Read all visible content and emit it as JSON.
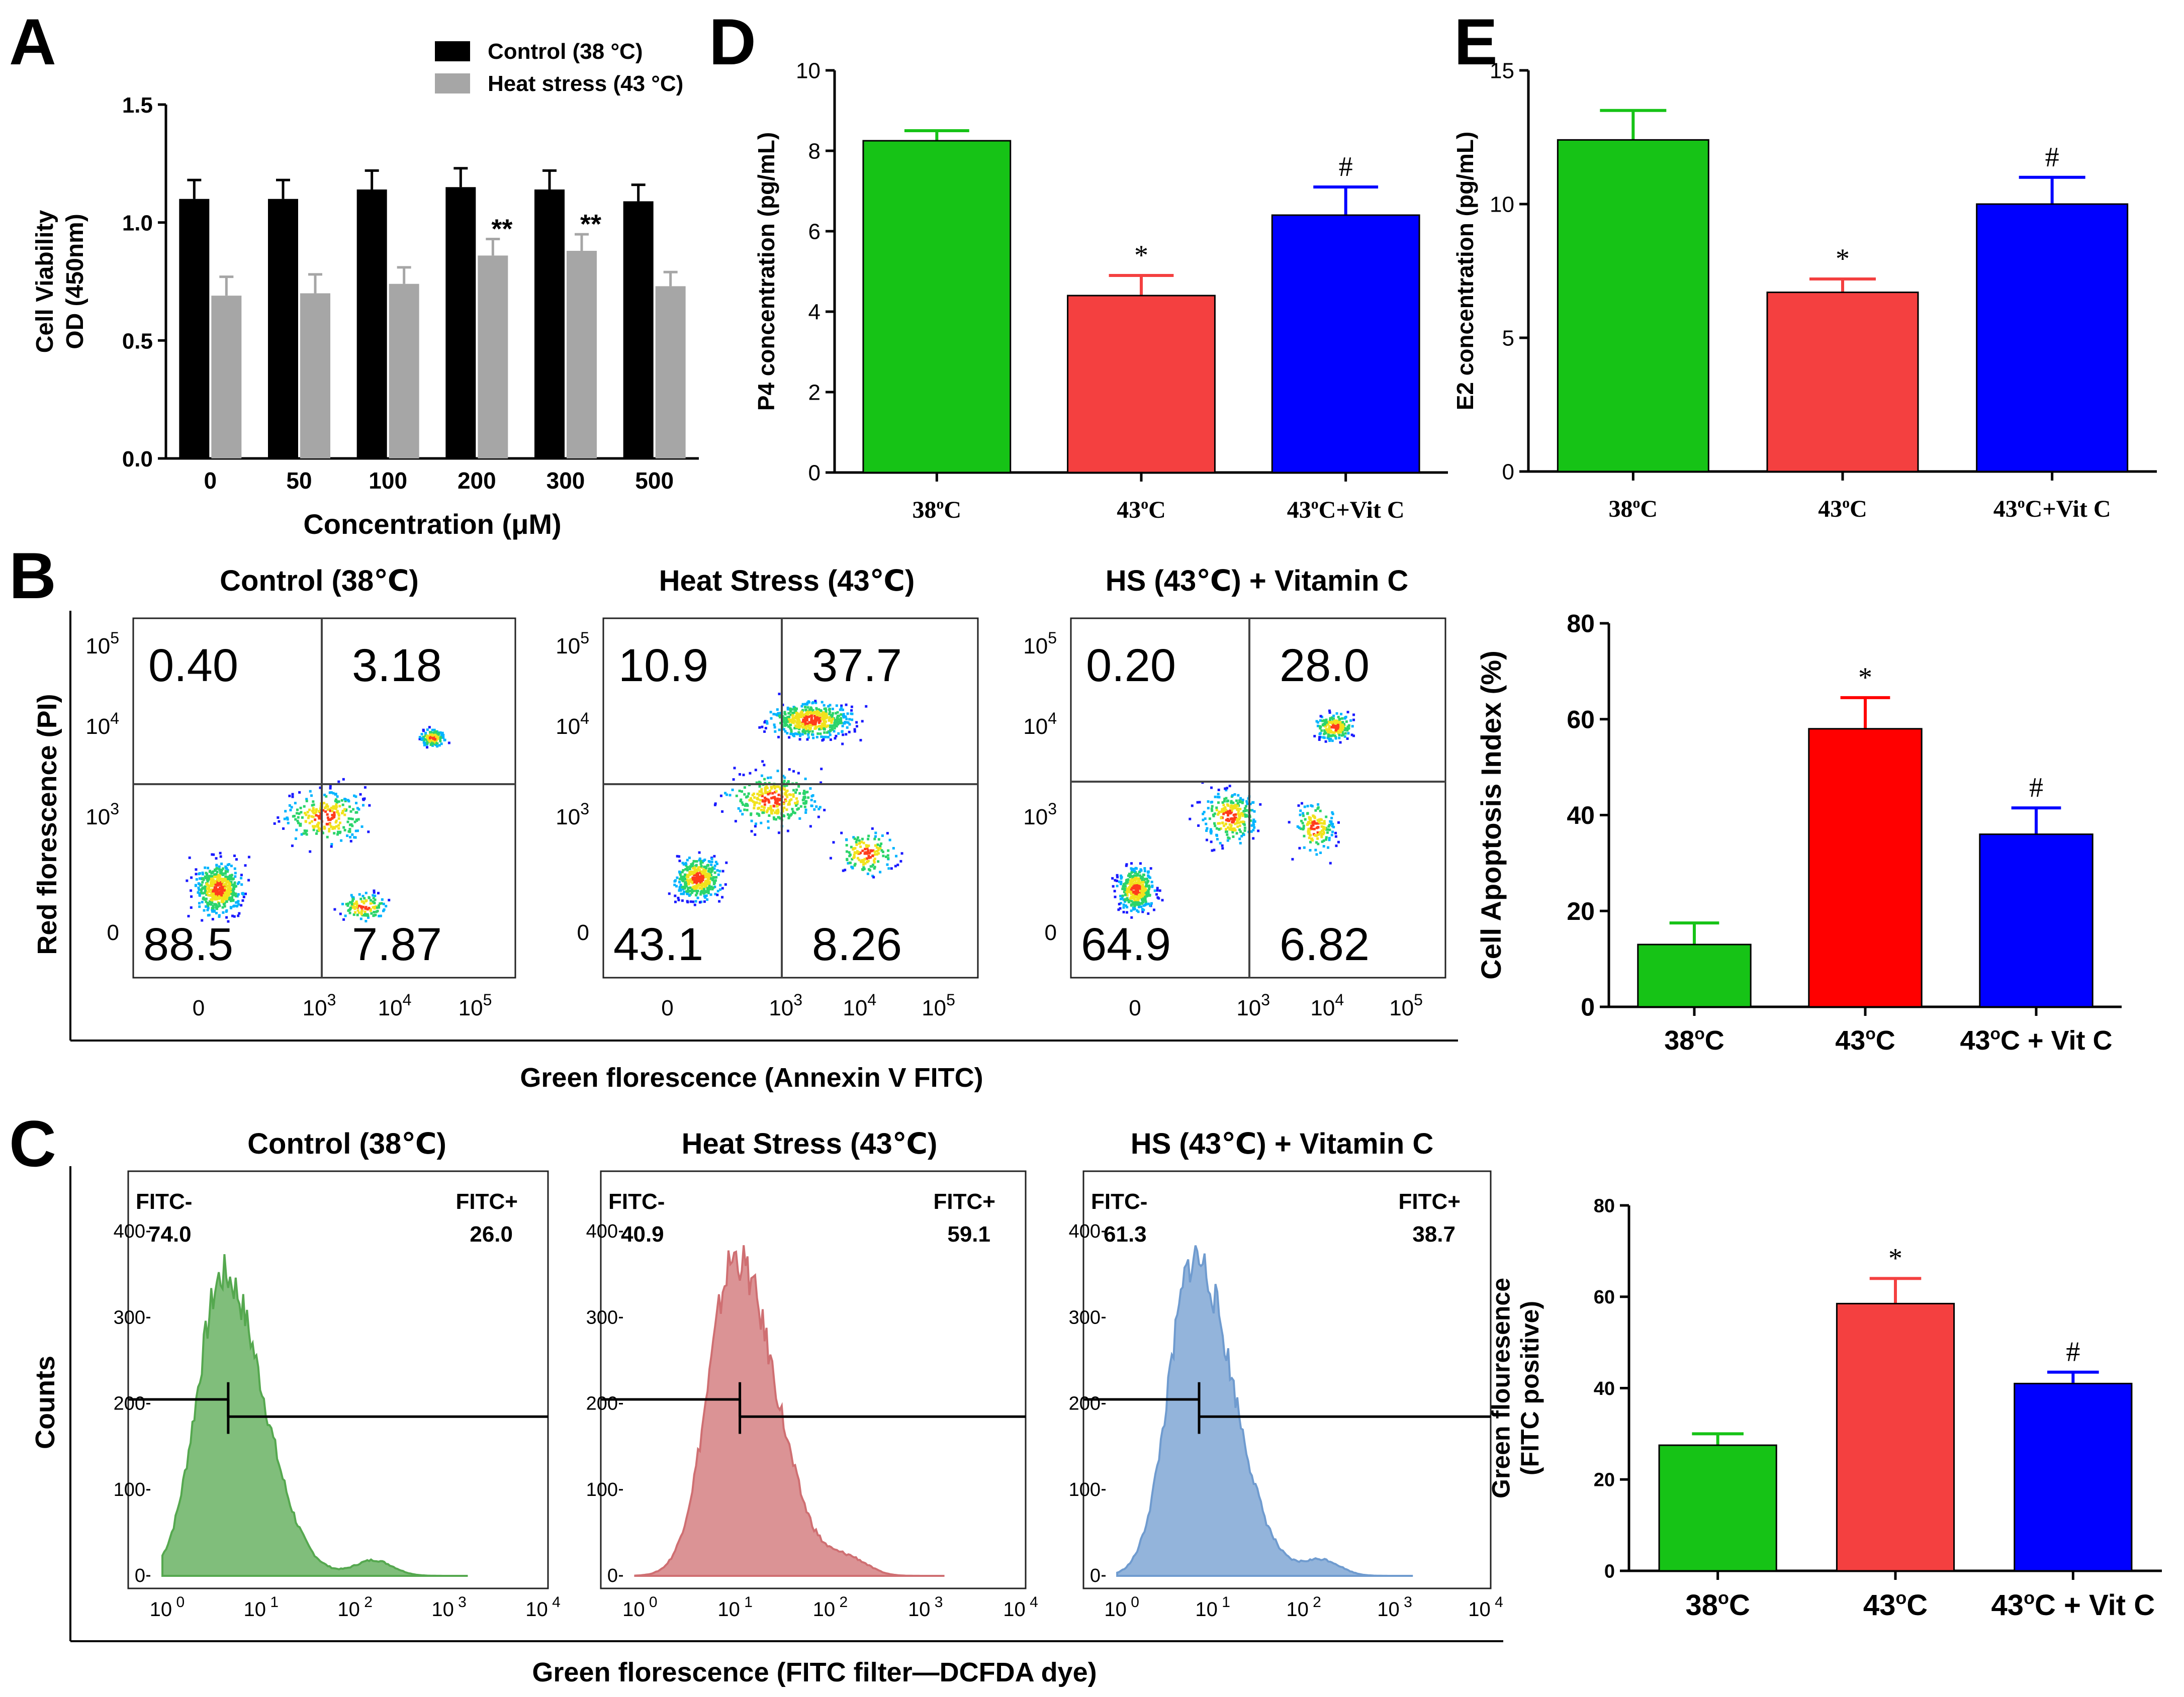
{
  "panels": {
    "A": {
      "letter": "A"
    },
    "B": {
      "letter": "B",
      "xlabel": "Green florescence (Annexin V FITC)",
      "ylabel": "Red florescence (PI)"
    },
    "C": {
      "letter": "C",
      "xlabel": "Green florescence (FITC filter—DCFDA dye)",
      "ylabel": "Counts"
    },
    "D": {
      "letter": "D"
    },
    "E": {
      "letter": "E"
    }
  },
  "colors": {
    "green": "#16c316",
    "red": "#f44040",
    "red_bright": "#ff0000",
    "blue": "#0000ff",
    "black": "#000000",
    "gray": "#a6a6a6"
  },
  "chart_data": [
    {
      "id": "A",
      "type": "bar",
      "categories": [
        "0",
        "50",
        "100",
        "200",
        "300",
        "500"
      ],
      "series": [
        {
          "name": "Control (38 °C)",
          "color": "#000000",
          "values": [
            1.1,
            1.1,
            1.14,
            1.15,
            1.14,
            1.09
          ],
          "errors": [
            0.08,
            0.08,
            0.08,
            0.08,
            0.08,
            0.07
          ]
        },
        {
          "name": "Heat stress (43 °C)",
          "color": "#a6a6a6",
          "values": [
            0.69,
            0.7,
            0.74,
            0.86,
            0.88,
            0.73
          ],
          "errors": [
            0.08,
            0.08,
            0.07,
            0.07,
            0.07,
            0.06
          ]
        }
      ],
      "annotations": [
        "",
        "",
        "",
        "**",
        "**",
        ""
      ],
      "xlabel": "Concentration (μM)",
      "ylabel": [
        "Cell Viability",
        "OD (450nm)"
      ],
      "ylim": [
        0,
        1.5
      ],
      "yticks": [
        "0.0",
        "0.5",
        "1.0",
        "1.5"
      ]
    },
    {
      "id": "D",
      "type": "bar",
      "categories": [
        "38°C",
        "43°C",
        "43°C+Vit C"
      ],
      "values": [
        8.25,
        4.4,
        6.4
      ],
      "errors": [
        0.25,
        0.5,
        0.7
      ],
      "colors": [
        "#16c316",
        "#f44040",
        "#0000ff"
      ],
      "annotations": [
        "",
        "*",
        "#"
      ],
      "ylabel": "P4 concentration (pg/mL)",
      "ylim": [
        0,
        10
      ],
      "yticks": [
        "0",
        "2",
        "4",
        "6",
        "8",
        "10"
      ]
    },
    {
      "id": "E",
      "type": "bar",
      "categories": [
        "38°C",
        "43°C",
        "43°C+Vit C"
      ],
      "values": [
        12.4,
        6.7,
        10.0
      ],
      "errors": [
        1.1,
        0.5,
        1.0
      ],
      "colors": [
        "#16c316",
        "#f44040",
        "#0000ff"
      ],
      "annotations": [
        "",
        "*",
        "#"
      ],
      "ylabel": "E2 concentration (pg/mL)",
      "ylim": [
        0,
        15
      ],
      "yticks": [
        "0",
        "5",
        "10",
        "15"
      ]
    },
    {
      "id": "B-bar",
      "type": "bar",
      "categories": [
        "38°C",
        "43°C",
        "43°C + Vit C"
      ],
      "values": [
        13,
        58,
        36
      ],
      "errors": [
        4.5,
        6.5,
        5.5
      ],
      "colors": [
        "#16c316",
        "#ff0000",
        "#0000ff"
      ],
      "annotations": [
        "",
        "*",
        "#"
      ],
      "ylabel": "Cell Apoptosis Index (%)",
      "ylim": [
        0,
        80
      ],
      "yticks": [
        "0",
        "20",
        "40",
        "60",
        "80"
      ]
    },
    {
      "id": "C-bar",
      "type": "bar",
      "categories": [
        "38°C",
        "43°C",
        "43°C + Vit C"
      ],
      "values": [
        27.5,
        58.5,
        41
      ],
      "errors": [
        2.5,
        5.5,
        2.5
      ],
      "colors": [
        "#16c316",
        "#f44040",
        "#0000ff"
      ],
      "annotations": [
        "",
        "*",
        "#"
      ],
      "ylabel": [
        "Green flouresence",
        "(FITC positive)"
      ],
      "ylim": [
        0,
        80
      ],
      "yticks": [
        "0",
        "20",
        "40",
        "60",
        "80"
      ]
    },
    {
      "id": "B-flow",
      "type": "scatter",
      "titles": [
        "Control (38℃)",
        "Heat Stress (43℃)",
        "HS (43℃) + Vitamin C"
      ],
      "quadrants": [
        {
          "ul": "0.40",
          "ur": "3.18",
          "ll": "88.5",
          "lr": "7.87"
        },
        {
          "ul": "10.9",
          "ur": "37.7",
          "ll": "43.1",
          "lr": "8.26"
        },
        {
          "ul": "0.20",
          "ur": "28.0",
          "ll": "64.9",
          "lr": "6.82"
        }
      ],
      "axis_ticks": [
        "0",
        "10",
        "3",
        "10",
        "4",
        "10",
        "5"
      ]
    },
    {
      "id": "C-hist",
      "type": "area",
      "titles": [
        "Control (38℃)",
        "Heat Stress (43℃)",
        "HS (43℃) + Vitamin C"
      ],
      "gates": [
        {
          "neg_label": "FITC-",
          "neg": "74.0",
          "pos_label": "FITC+",
          "pos": "26.0"
        },
        {
          "neg_label": "FITC-",
          "neg": "40.9",
          "pos_label": "FITC+",
          "pos": "59.1"
        },
        {
          "neg_label": "FITC-",
          "neg": "61.3",
          "pos_label": "FITC+",
          "pos": "38.7"
        }
      ],
      "peak_log10": [
        0.6,
        1.0,
        0.8
      ],
      "peak_counts": [
        350,
        370,
        370
      ],
      "colors": [
        "#55a84f",
        "#cf6f72",
        "#6f9bcf"
      ],
      "yticks": [
        "0",
        "100",
        "200",
        "300",
        "400"
      ],
      "xticks": [
        "0",
        "1",
        "2",
        "3",
        "4"
      ],
      "xtick_base": "10"
    }
  ]
}
